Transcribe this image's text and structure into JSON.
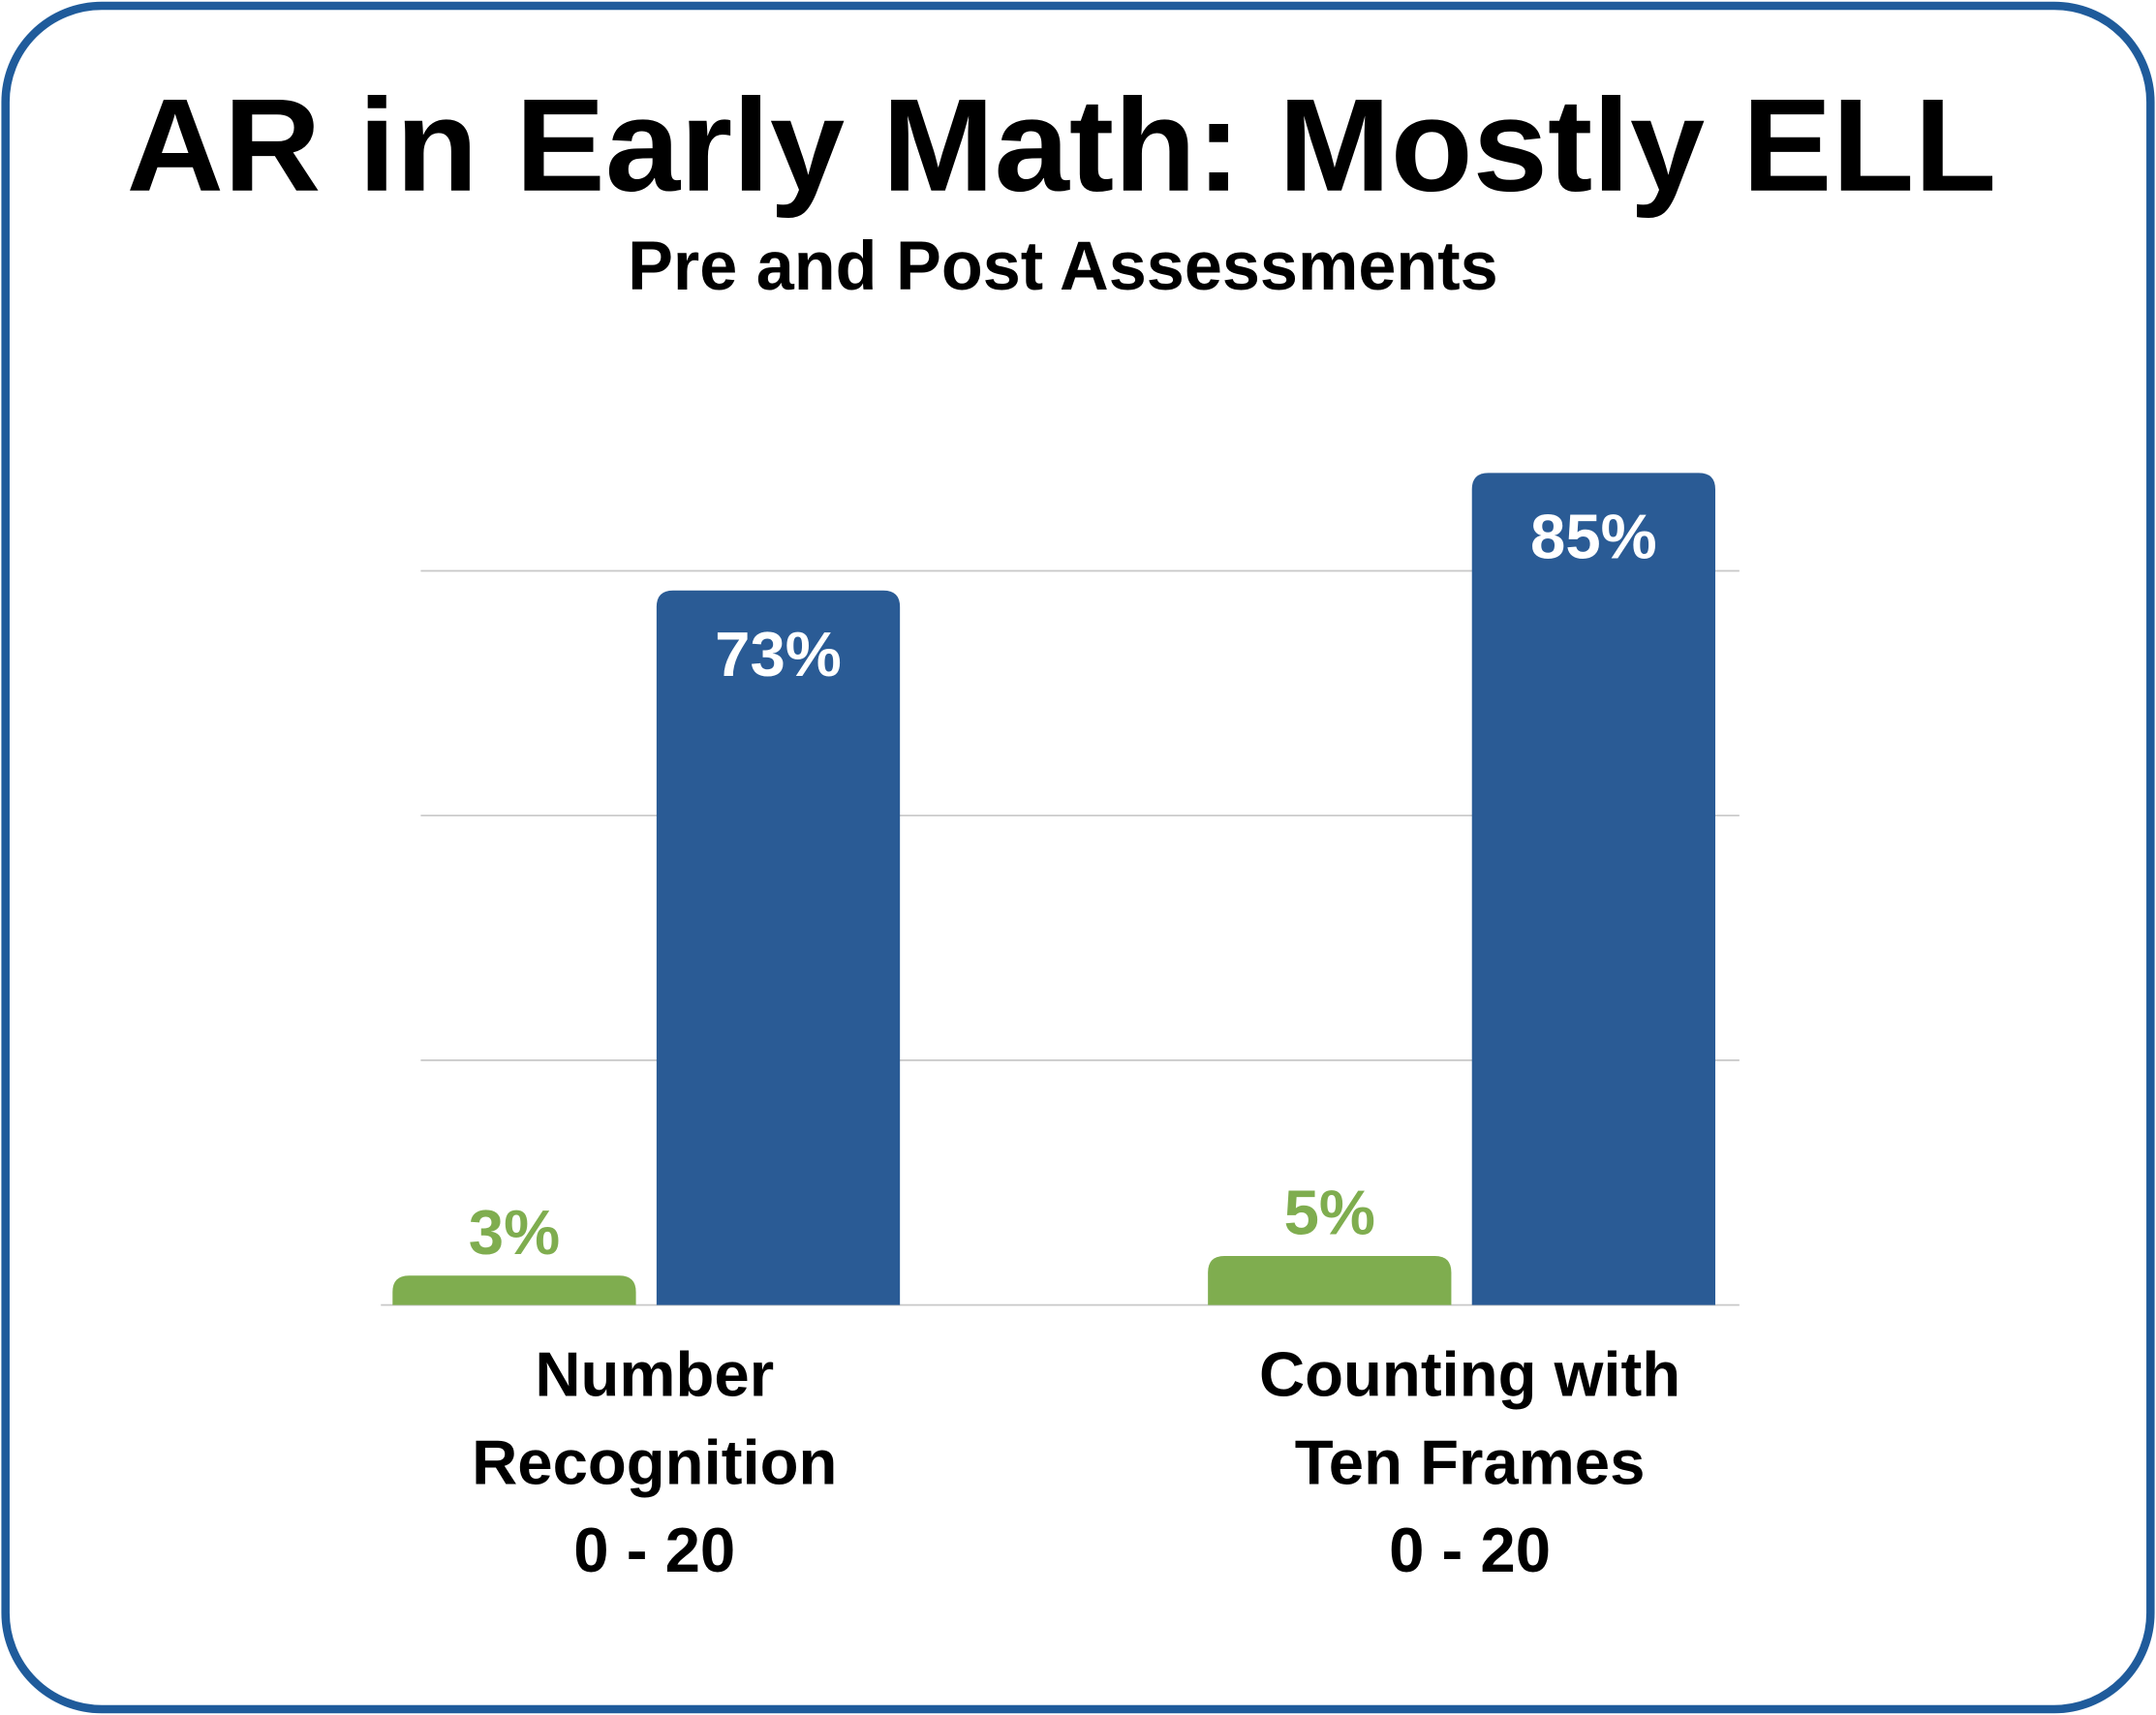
{
  "chart_data": {
    "type": "bar",
    "title": "AR in Early Math: Mostly ELL",
    "subtitle": "Pre and Post Assessments",
    "categories": [
      [
        "Number",
        "Recognition",
        "0 - 20"
      ],
      [
        "Counting with",
        "Ten Frames",
        "0 - 20"
      ]
    ],
    "series": [
      {
        "color": "#7fad4f",
        "values": [
          3,
          5
        ],
        "value_labels": [
          "3%",
          "5%"
        ]
      },
      {
        "color": "#2a5b95",
        "values": [
          73,
          85
        ],
        "value_labels": [
          "73%",
          "85%"
        ]
      }
    ],
    "ylim": [
      0,
      100
    ],
    "yticks": [
      0,
      25,
      50,
      75
    ],
    "grid": true
  }
}
